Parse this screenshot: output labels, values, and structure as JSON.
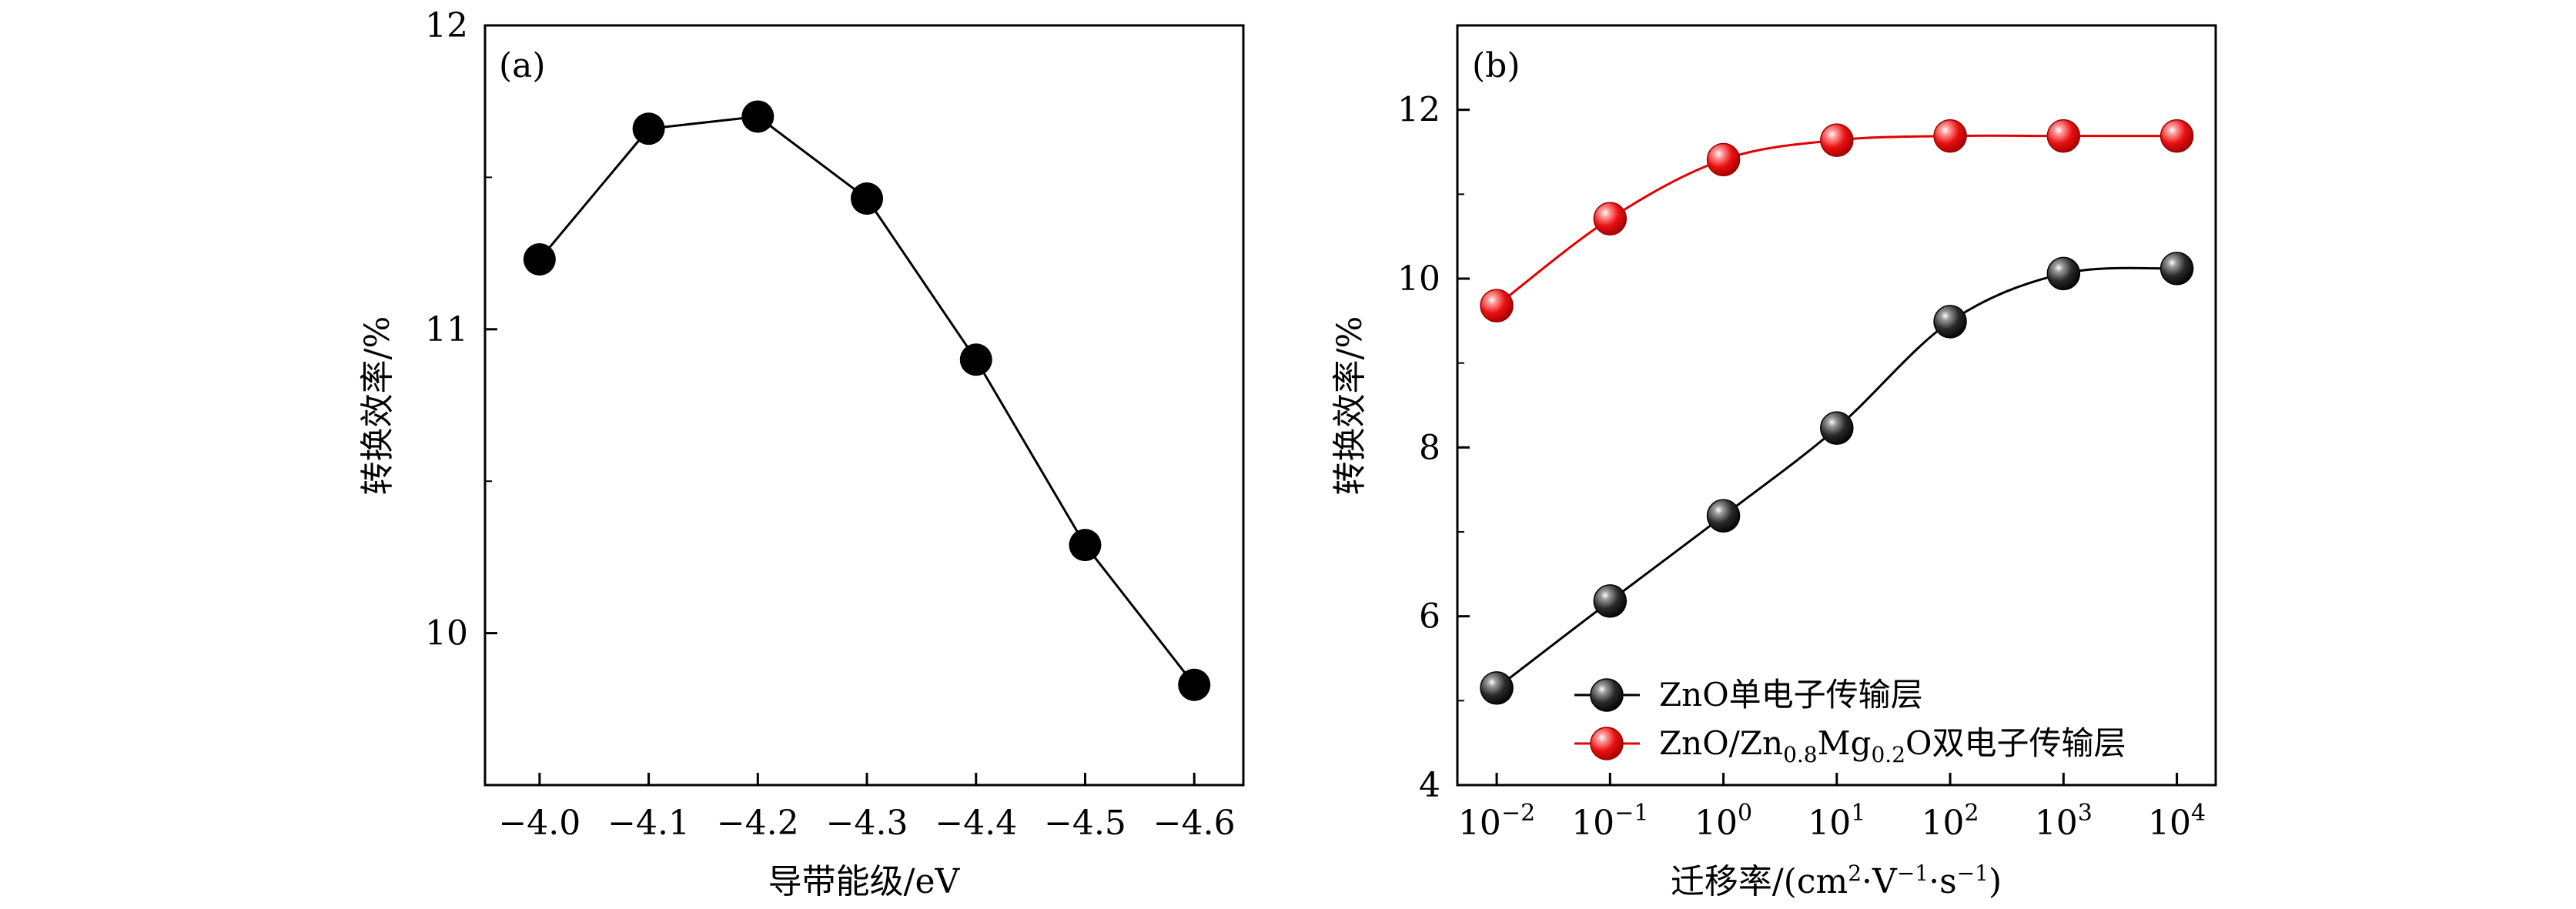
{
  "chart_data": [
    {
      "type": "line",
      "panel_label": "(a)",
      "xlabel": "导带能级/eV",
      "ylabel": "转换效率/%",
      "x_ticks": [
        -4.0,
        -4.1,
        -4.2,
        -4.3,
        -4.4,
        -4.5,
        -4.6
      ],
      "x_tick_labels": [
        "−4.0",
        "−4.1",
        "−4.2",
        "−4.3",
        "−4.4",
        "−4.5",
        "−4.6"
      ],
      "xlim": [
        -3.95,
        -4.645
      ],
      "x_reversed": true,
      "y_ticks": [
        10,
        11,
        12
      ],
      "y_tick_labels": [
        "10",
        "11",
        "12"
      ],
      "ylim": [
        9.5,
        12
      ],
      "grid": false,
      "series": [
        {
          "color": "#000000",
          "marker": "filled-circle",
          "x": [
            -4.0,
            -4.1,
            -4.2,
            -4.3,
            -4.4,
            -4.5,
            -4.6
          ],
          "y": [
            11.23,
            11.66,
            11.7,
            11.43,
            10.9,
            10.29,
            9.83
          ]
        }
      ]
    },
    {
      "type": "line",
      "panel_label": "(b)",
      "xlabel": "迁移率/(cm²·V⁻¹·s⁻¹)",
      "xlabel_parts": [
        "迁移率/(cm",
        "2",
        "·V",
        "−1",
        "·s",
        "−1",
        ")"
      ],
      "ylabel": "转换效率/%",
      "x_scale": "log",
      "x_ticks": [
        0.01,
        0.1,
        1,
        10,
        100,
        1000,
        10000
      ],
      "x_tick_exponents": [
        "−2",
        "−1",
        "0",
        "1",
        "2",
        "3",
        "4"
      ],
      "x_tick_base": "10",
      "xlim": [
        0.0045,
        22000
      ],
      "y_ticks": [
        4,
        6,
        8,
        10,
        12
      ],
      "y_tick_labels": [
        "4",
        "6",
        "8",
        "10",
        "12"
      ],
      "ylim": [
        4,
        13
      ],
      "grid": false,
      "legend_position": "bottom-right",
      "series": [
        {
          "name": "ZnO单电子传输层",
          "name_parts": [
            "ZnO单电子传输层"
          ],
          "color": "#000000",
          "marker": "shaded-sphere",
          "x": [
            0.01,
            0.1,
            1,
            10,
            100,
            1000,
            10000
          ],
          "y": [
            5.15,
            6.18,
            7.19,
            8.23,
            9.49,
            10.06,
            10.12
          ]
        },
        {
          "name": "ZnO/Zn0.8Mg0.2O双电子传输层",
          "name_parts": [
            "ZnO/Zn",
            "0.8",
            "Mg",
            "0.2",
            "O双电子传输层"
          ],
          "color": "#e00000",
          "marker": "shaded-sphere",
          "x": [
            0.01,
            0.1,
            1,
            10,
            100,
            1000,
            10000
          ],
          "y": [
            9.68,
            10.71,
            11.41,
            11.64,
            11.69,
            11.69,
            11.69
          ]
        }
      ]
    }
  ]
}
